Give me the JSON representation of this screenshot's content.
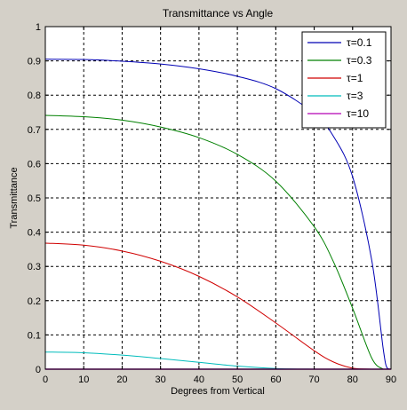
{
  "window": {
    "background": "#d4d0c8"
  },
  "chart_data": {
    "type": "line",
    "title": "Transmittance vs Angle",
    "xlabel": "Degrees from Vertical",
    "ylabel": "Transmittance",
    "xlim": [
      0,
      90
    ],
    "ylim": [
      0,
      1
    ],
    "xticks": [
      0,
      10,
      20,
      30,
      40,
      50,
      60,
      70,
      80,
      90
    ],
    "yticks": [
      0,
      0.1,
      0.2,
      0.3,
      0.4,
      0.5,
      0.6,
      0.7,
      0.8,
      0.9,
      1
    ],
    "xtick_labels": [
      "0",
      "10",
      "20",
      "30",
      "40",
      "50",
      "60",
      "70",
      "80",
      "90"
    ],
    "ytick_labels": [
      "0",
      "0.1",
      "0.2",
      "0.3",
      "0.4",
      "0.5",
      "0.6",
      "0.7",
      "0.8",
      "0.9",
      "1"
    ],
    "grid": true,
    "grid_style": "dashed",
    "legend_position": "top-right",
    "x": [
      0,
      10,
      20,
      30,
      40,
      50,
      60,
      70,
      75,
      80,
      85,
      88,
      89,
      90
    ],
    "series": [
      {
        "name": "τ=0.1",
        "color": "#0000b4",
        "values": [
          0.905,
          0.904,
          0.899,
          0.891,
          0.877,
          0.855,
          0.819,
          0.746,
          0.68,
          0.562,
          0.317,
          0.057,
          0.003,
          0
        ]
      },
      {
        "name": "τ=0.3",
        "color": "#008000",
        "values": [
          0.741,
          0.737,
          0.727,
          0.707,
          0.676,
          0.627,
          0.549,
          0.416,
          0.314,
          0.178,
          0.032,
          0,
          0,
          0
        ]
      },
      {
        "name": "τ=1",
        "color": "#d00000",
        "values": [
          0.368,
          0.362,
          0.345,
          0.315,
          0.271,
          0.211,
          0.135,
          0.054,
          0.021,
          0.003,
          0,
          0,
          0,
          0
        ]
      },
      {
        "name": "τ=3",
        "color": "#00bcbc",
        "values": [
          0.05,
          0.048,
          0.041,
          0.031,
          0.02,
          0.009,
          0.002,
          0,
          0,
          0,
          0,
          0,
          0,
          0
        ]
      },
      {
        "name": "τ=10",
        "color": "#b400b4",
        "values": [
          0,
          0,
          0,
          0,
          0,
          0,
          0,
          0,
          0,
          0,
          0,
          0,
          0,
          0
        ]
      }
    ]
  }
}
